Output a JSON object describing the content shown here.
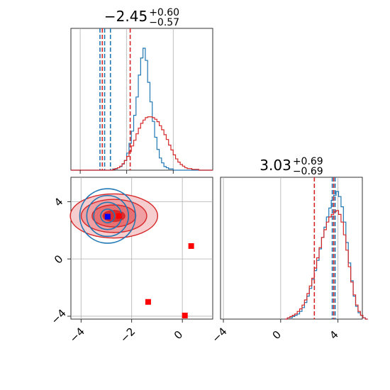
{
  "colors": {
    "blue": "#1f77b4",
    "red": "#d62728",
    "grid": "#b0b0b0",
    "marker_blue": "#0000ff",
    "marker_red": "#ff0000"
  },
  "chart_data": [
    {
      "type": "histogram",
      "panel": "top-left marginal of parameter 1",
      "title": {
        "median": "−2.45",
        "plus": "+0.60",
        "minus": "−0.57"
      },
      "xlim": [
        -4.4,
        1.7
      ],
      "grid": true,
      "series": [
        {
          "color": "blue",
          "bins_start": -4.4,
          "bin_width": 0.1,
          "counts": [
            0,
            0,
            0,
            0,
            0,
            0,
            0,
            0,
            0,
            0,
            0,
            0,
            0,
            0,
            0,
            0,
            0,
            0,
            1,
            1,
            2,
            3,
            5,
            8,
            14,
            22,
            32,
            45,
            60,
            78,
            92,
            100,
            90,
            72,
            56,
            40,
            27,
            17,
            10,
            6,
            3,
            2,
            1,
            1,
            0,
            0,
            0,
            0,
            0,
            0,
            0,
            0,
            0,
            0,
            0,
            0,
            0,
            0,
            0,
            0,
            0
          ],
          "quantile_lines": [
            -3.15,
            -2.95,
            -2.7
          ]
        },
        {
          "color": "red",
          "bins_start": -4.4,
          "bin_width": 0.1,
          "counts": [
            0,
            0,
            0,
            0,
            0,
            0,
            0,
            0,
            0,
            0,
            0,
            0,
            0,
            0,
            0,
            0,
            0,
            0,
            1,
            2,
            3,
            5,
            8,
            12,
            17,
            23,
            30,
            37,
            45,
            52,
            58,
            62,
            65,
            66,
            66,
            65,
            63,
            60,
            55,
            50,
            44,
            38,
            31,
            25,
            19,
            14,
            10,
            7,
            5,
            3,
            2,
            2,
            1,
            1,
            1,
            0,
            0,
            0,
            0,
            0,
            0
          ],
          "quantile_lines": [
            -3.05,
            -1.85
          ]
        }
      ]
    },
    {
      "type": "contour",
      "panel": "bottom-left 2D joint",
      "xlim": [
        -4.4,
        1.2
      ],
      "ylim": [
        -4.2,
        5.7
      ],
      "x_ticks": [
        -4,
        -2,
        0
      ],
      "y_ticks": [
        -4,
        0,
        4
      ],
      "grid": true,
      "red_density": {
        "center": [
          -2.7,
          3.0
        ],
        "sigma": [
          0.75,
          0.7
        ],
        "levels": [
          0.5,
          1.0,
          1.5,
          2.0
        ]
      },
      "blue_density": {
        "center": [
          -2.95,
          3.0
        ],
        "sigma": [
          0.5,
          1.0
        ],
        "levels": [
          0.5,
          1.0,
          1.5,
          2.0
        ]
      },
      "markers": [
        {
          "color": "marker_blue",
          "x": -2.95,
          "y": 2.95
        },
        {
          "color": "marker_red",
          "x": -2.5,
          "y": 3.0
        },
        {
          "color": "marker_red",
          "x": 0.35,
          "y": 0.9
        },
        {
          "color": "marker_red",
          "x": -1.35,
          "y": -3.0
        },
        {
          "color": "marker_red",
          "x": 0.1,
          "y": -3.95
        }
      ]
    },
    {
      "type": "histogram",
      "panel": "bottom-right marginal of parameter 2",
      "title": {
        "median": "3.03",
        "plus": "+0.69",
        "minus": "−0.69"
      },
      "xlim": [
        -4.2,
        5.7
      ],
      "x_ticks": [
        -4,
        0,
        4
      ],
      "grid": true,
      "series": [
        {
          "color": "blue",
          "bins_start": 0.3,
          "bin_width": 0.17,
          "counts": [
            0,
            1,
            1,
            2,
            3,
            4,
            6,
            9,
            13,
            18,
            24,
            31,
            38,
            46,
            55,
            64,
            72,
            80,
            87,
            93,
            97,
            100,
            96,
            88,
            76,
            60,
            44,
            30,
            18,
            10,
            5,
            3,
            1,
            0
          ],
          "quantile_lines": [
            3.6,
            3.8
          ]
        },
        {
          "color": "red",
          "bins_start": 0.3,
          "bin_width": 0.17,
          "counts": [
            0,
            1,
            2,
            3,
            4,
            6,
            8,
            11,
            15,
            20,
            26,
            32,
            40,
            48,
            56,
            64,
            70,
            76,
            80,
            82,
            84,
            85,
            82,
            76,
            66,
            54,
            41,
            29,
            19,
            11,
            6,
            3,
            1,
            0
          ],
          "quantile_lines": [
            2.35,
            3.7
          ]
        }
      ]
    }
  ]
}
